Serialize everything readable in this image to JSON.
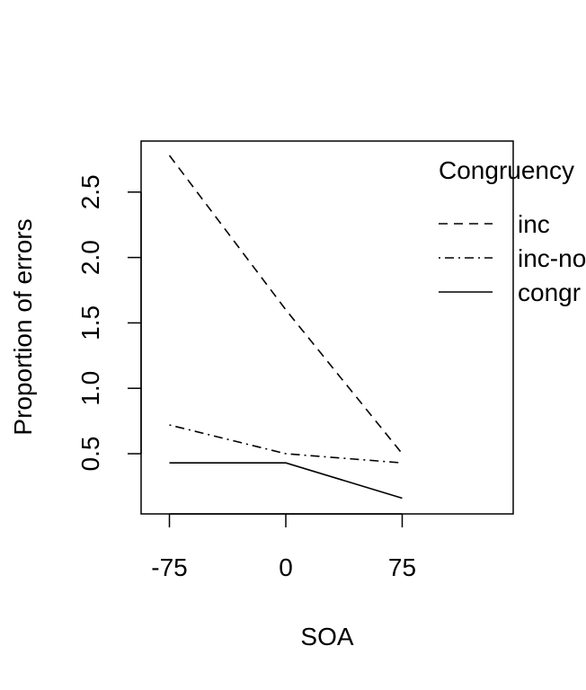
{
  "chart_data": {
    "type": "line",
    "title": "",
    "xlabel": "SOA",
    "ylabel": "Proportion of errors",
    "x": [
      -75,
      0,
      75
    ],
    "x_tick_labels": [
      "-75",
      "0",
      "75"
    ],
    "y_ticks": [
      0.5,
      1.0,
      1.5,
      2.0,
      2.5
    ],
    "y_tick_labels": [
      "0.5",
      "1.0",
      "1.5",
      "2.0",
      "2.5"
    ],
    "ylim": [
      0.15,
      2.8
    ],
    "legend_title": "Congruency",
    "legend_placement": "top-right",
    "grid": false,
    "series": [
      {
        "name": "inc",
        "line_style": "dashed",
        "values": [
          2.78,
          1.6,
          0.5
        ]
      },
      {
        "name": "inc-no",
        "line_style": "dotdash",
        "values": [
          0.72,
          0.5,
          0.43
        ]
      },
      {
        "name": "congr",
        "line_style": "solid",
        "values": [
          0.43,
          0.43,
          0.16
        ]
      }
    ]
  }
}
